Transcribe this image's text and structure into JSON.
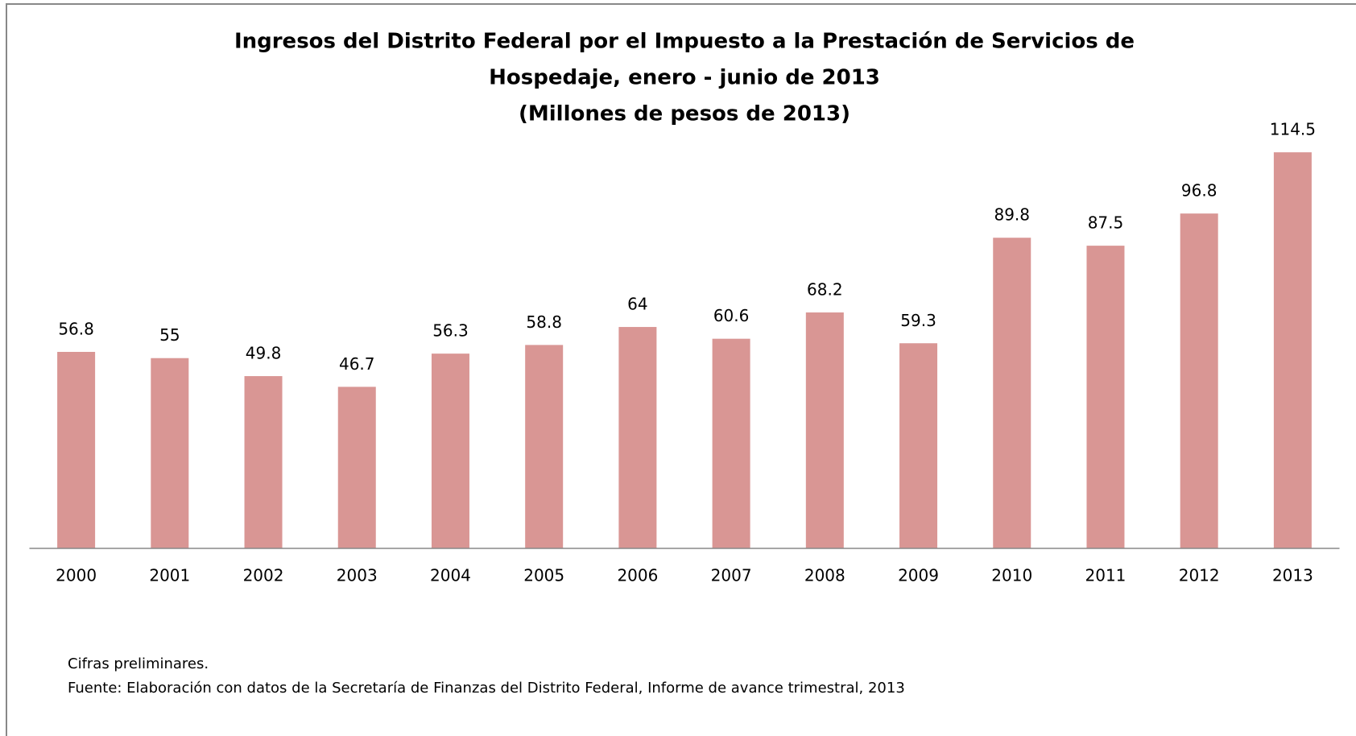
{
  "chart_data": {
    "type": "bar",
    "title": [
      "Ingresos del Distrito Federal por el Impuesto a la Prestación de Servicios de",
      "Hospedaje, enero - junio de 2013"
    ],
    "subtitle": "(Millones de pesos de 2013)",
    "categories": [
      "2000",
      "2001",
      "2002",
      "2003",
      "2004",
      "2005",
      "2006",
      "2007",
      "2008",
      "2009",
      "2010",
      "2011",
      "2012",
      "2013"
    ],
    "values": [
      56.8,
      55,
      49.8,
      46.7,
      56.3,
      58.8,
      64,
      60.6,
      68.2,
      59.3,
      89.8,
      87.5,
      96.8,
      114.5
    ],
    "color": "#d99694",
    "ylim": [
      0,
      120
    ],
    "notes": [
      "Cifras preliminares.",
      "Fuente: Elaboración con datos de la Secretaría de Finanzas del Distrito Federal, Informe de avance trimestral, 2013"
    ]
  }
}
